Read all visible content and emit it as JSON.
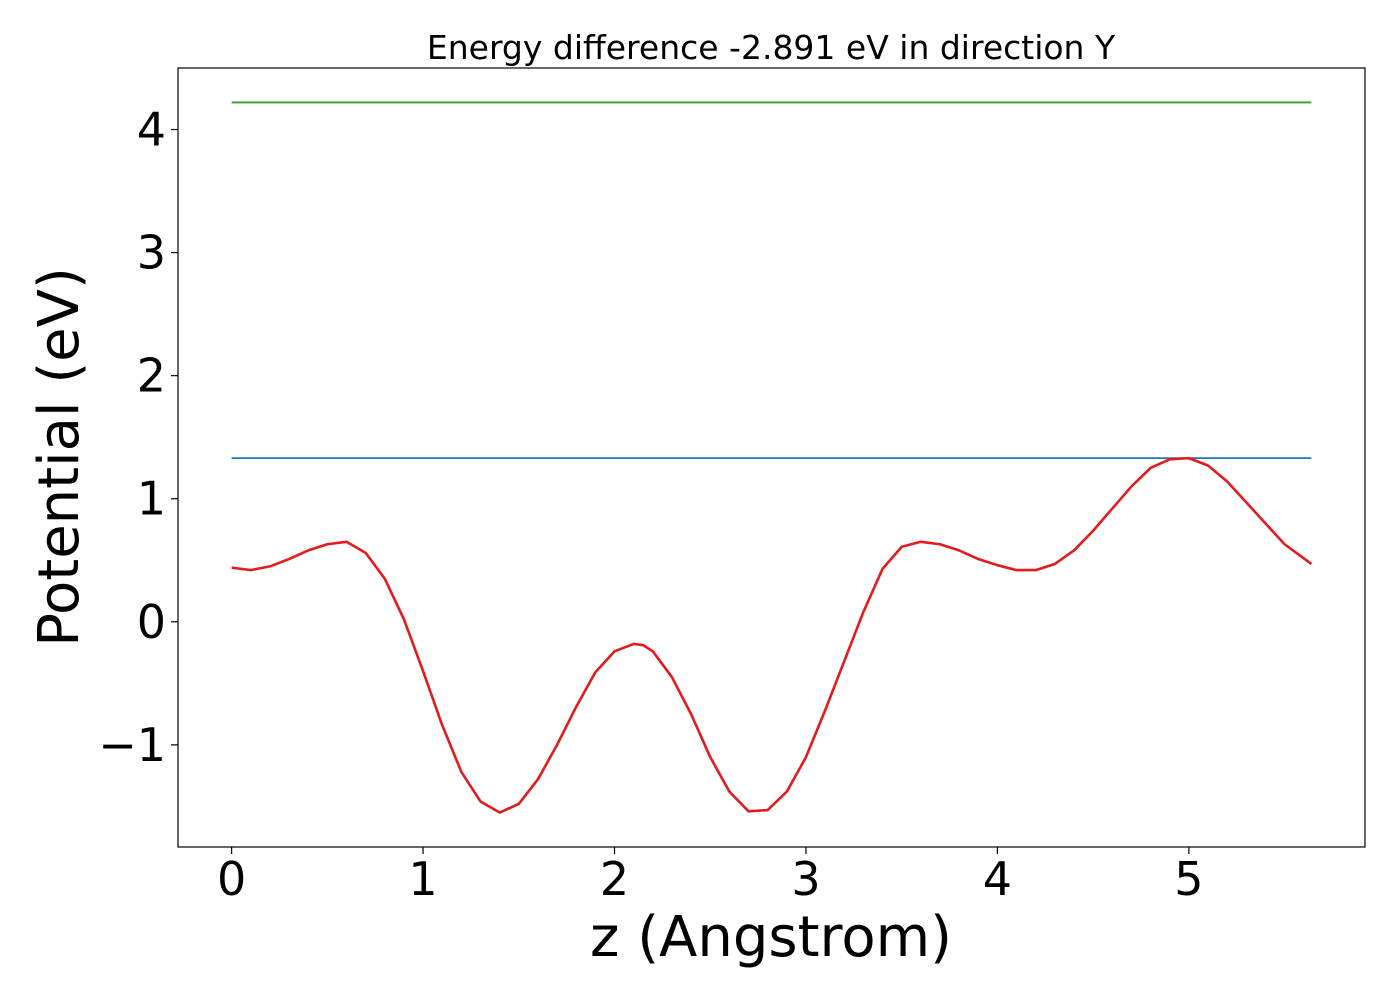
{
  "chart_data": {
    "type": "line",
    "title": "Energy difference -2.891 eV in direction Y",
    "xlabel": "z (Angstrom)",
    "ylabel": "Potential (eV)",
    "xlim": [
      -0.28,
      5.92
    ],
    "ylim": [
      -1.83,
      4.5
    ],
    "grid": false,
    "xticks": [
      {
        "value": 0,
        "label": "0"
      },
      {
        "value": 1,
        "label": "1"
      },
      {
        "value": 2,
        "label": "2"
      },
      {
        "value": 3,
        "label": "3"
      },
      {
        "value": 4,
        "label": "4"
      },
      {
        "value": 5,
        "label": "5"
      }
    ],
    "yticks": [
      {
        "value": -1,
        "label": "−1"
      },
      {
        "value": 0,
        "label": "0"
      },
      {
        "value": 1,
        "label": "1"
      },
      {
        "value": 2,
        "label": "2"
      },
      {
        "value": 3,
        "label": "3"
      },
      {
        "value": 4,
        "label": "4"
      }
    ],
    "series": [
      {
        "color": "#2ca02c",
        "x": [
          0.0,
          5.64
        ],
        "y": [
          4.22,
          4.22
        ]
      },
      {
        "color": "#1f77b4",
        "x": [
          0.0,
          5.64
        ],
        "y": [
          1.33,
          1.33
        ]
      },
      {
        "color": "#e41a1c",
        "x": [
          0.0,
          0.1,
          0.2,
          0.3,
          0.4,
          0.5,
          0.6,
          0.7,
          0.8,
          0.9,
          1.0,
          1.1,
          1.2,
          1.3,
          1.4,
          1.5,
          1.6,
          1.7,
          1.8,
          1.9,
          2.0,
          2.1,
          2.15,
          2.2,
          2.3,
          2.4,
          2.5,
          2.6,
          2.7,
          2.8,
          2.9,
          3.0,
          3.1,
          3.2,
          3.3,
          3.4,
          3.5,
          3.6,
          3.7,
          3.8,
          3.9,
          4.0,
          4.1,
          4.2,
          4.3,
          4.4,
          4.5,
          4.6,
          4.7,
          4.8,
          4.9,
          5.0,
          5.1,
          5.2,
          5.3,
          5.4,
          5.5,
          5.64
        ],
        "y": [
          0.44,
          0.42,
          0.45,
          0.51,
          0.58,
          0.63,
          0.65,
          0.56,
          0.35,
          0.02,
          -0.4,
          -0.84,
          -1.22,
          -1.46,
          -1.55,
          -1.48,
          -1.28,
          -1.0,
          -0.69,
          -0.41,
          -0.24,
          -0.18,
          -0.19,
          -0.24,
          -0.45,
          -0.75,
          -1.1,
          -1.38,
          -1.54,
          -1.53,
          -1.38,
          -1.1,
          -0.72,
          -0.32,
          0.08,
          0.43,
          0.61,
          0.65,
          0.63,
          0.58,
          0.51,
          0.46,
          0.42,
          0.42,
          0.47,
          0.58,
          0.74,
          0.92,
          1.1,
          1.25,
          1.32,
          1.33,
          1.27,
          1.14,
          0.97,
          0.8,
          0.63,
          0.47
        ]
      }
    ]
  }
}
